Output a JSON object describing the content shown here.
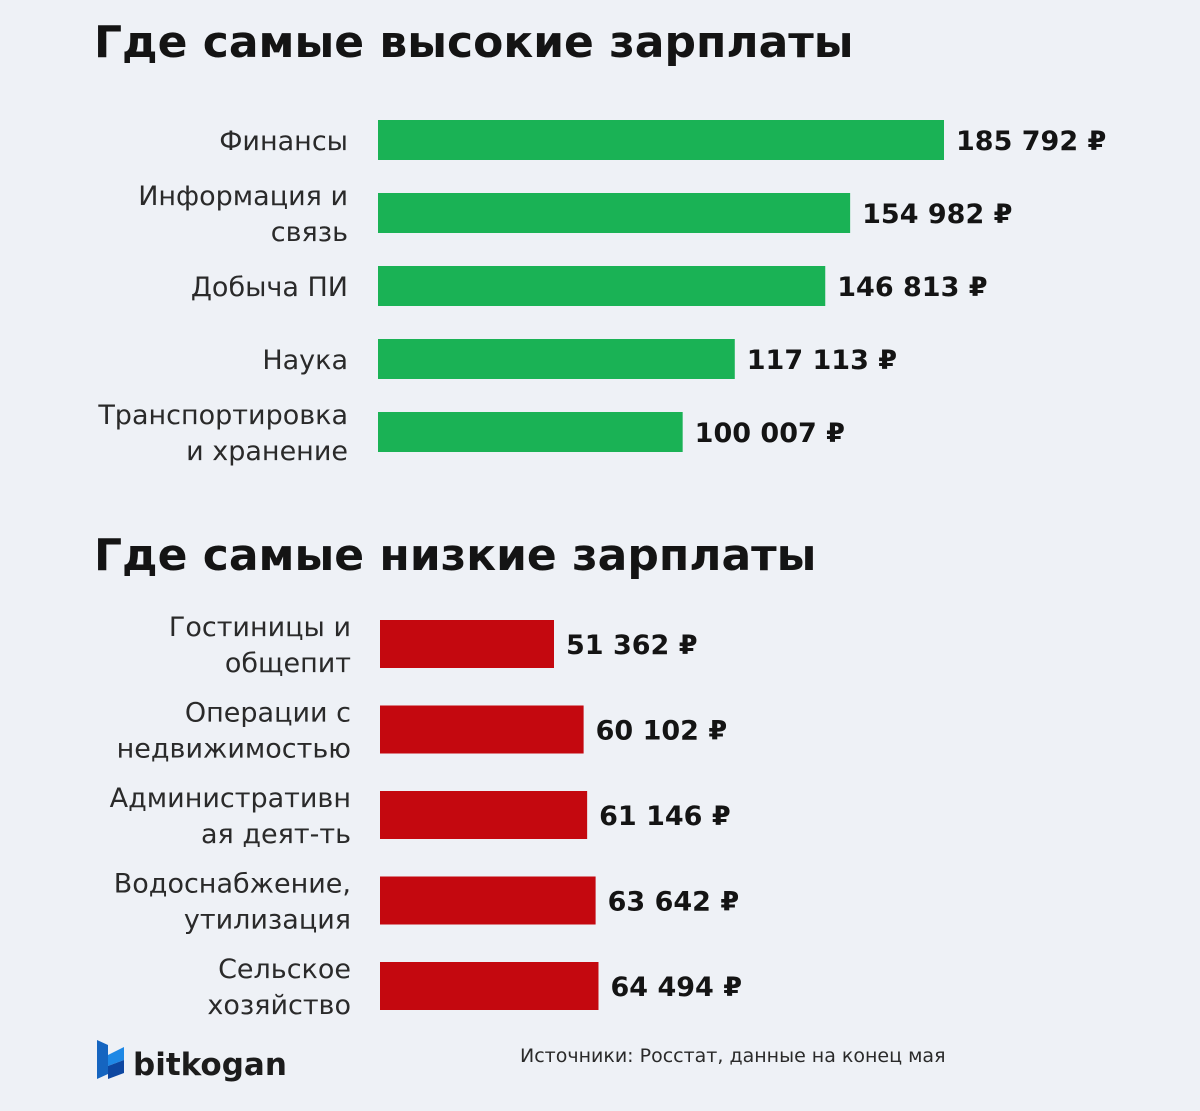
{
  "charts": [
    {
      "type": "bar",
      "orientation": "horizontal",
      "title": "Где самые высокие зарплаты",
      "color": "#1ab255",
      "categories": [
        [
          "Финансы"
        ],
        [
          "Информация и",
          "связь"
        ],
        [
          "Добыча ПИ"
        ],
        [
          "Наука"
        ],
        [
          "Транспортировка",
          "и хранение"
        ]
      ],
      "values": [
        185792,
        154982,
        146813,
        117113,
        100007
      ],
      "value_labels": [
        "185 792 ₽",
        "154 982 ₽",
        "146 813 ₽",
        "117 113 ₽",
        "100 007 ₽"
      ]
    },
    {
      "type": "bar",
      "orientation": "horizontal",
      "title": "Где самые низкие зарплаты",
      "color": "#c4080f",
      "categories": [
        [
          "Гостиницы и",
          "общепит"
        ],
        [
          "Операции с",
          "недвижимостью"
        ],
        [
          "Административн",
          "ая деят-ть"
        ],
        [
          "Водоснабжение,",
          "утилизация"
        ],
        [
          "Сельское",
          "хозяйство"
        ]
      ],
      "values": [
        51362,
        60102,
        61146,
        63642,
        64494
      ],
      "value_labels": [
        "51 362 ₽",
        "60 102 ₽",
        "61 146 ₽",
        "63 642 ₽",
        "64 494 ₽"
      ]
    }
  ],
  "chart_data": [
    {
      "type": "bar",
      "title": "Где самые высокие зарплаты",
      "categories": [
        "Финансы",
        "Информация и связь",
        "Добыча ПИ",
        "Наука",
        "Транспортировка и хранение"
      ],
      "values": [
        185792,
        154982,
        146813,
        117113,
        100007
      ]
    },
    {
      "type": "bar",
      "title": "Где самые низкие зарплаты",
      "categories": [
        "Гостиницы и общепит",
        "Операции с недвижимостью",
        "Административная деят-ть",
        "Водоснабжение, утилизация",
        "Сельское хозяйство"
      ],
      "values": [
        51362,
        60102,
        61146,
        63642,
        64494
      ]
    }
  ],
  "footer": {
    "brand": "bitkogan",
    "brand_color": "#1565c0",
    "source": "Источники: Росстат, данные на конец мая"
  }
}
